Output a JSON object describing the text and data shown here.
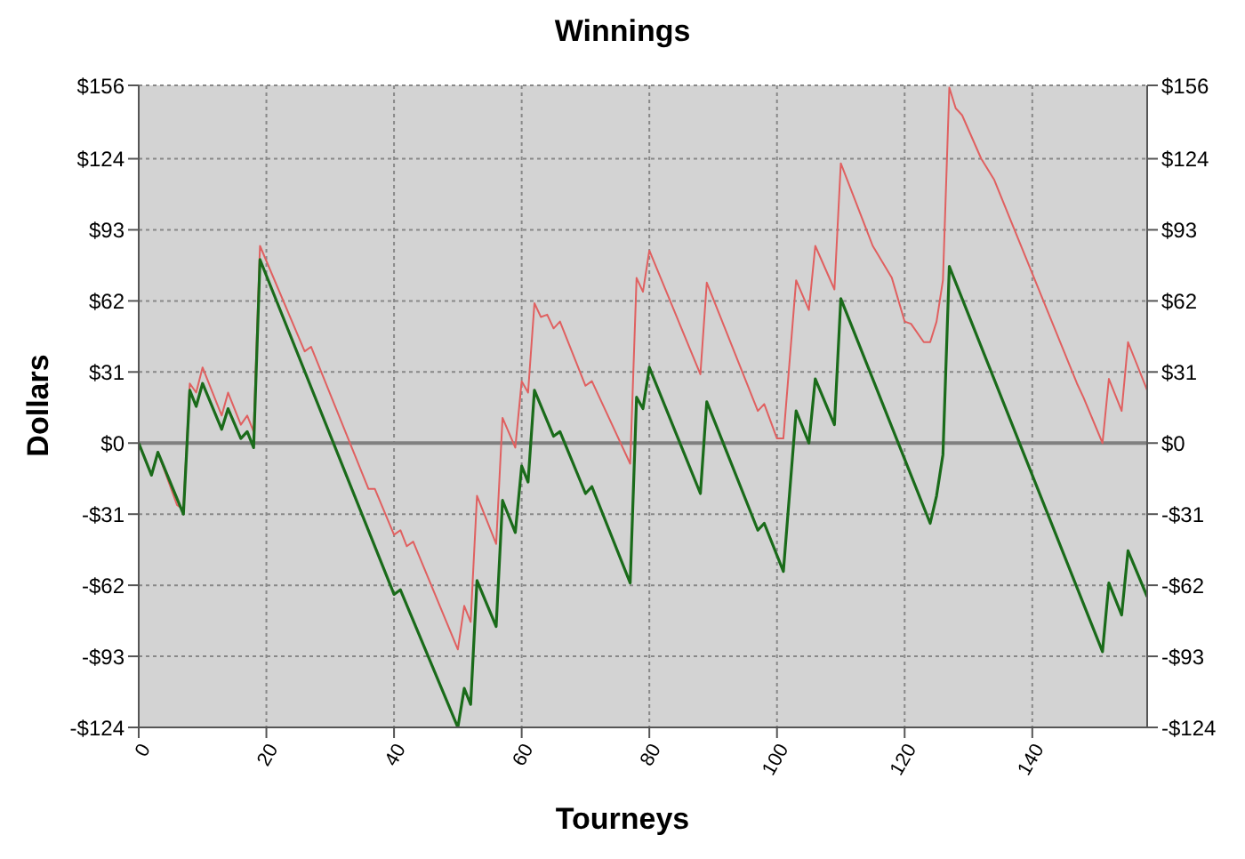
{
  "chart_data": {
    "type": "line",
    "title": "Winnings",
    "xlabel": "Tourneys",
    "ylabel": "Dollars",
    "xlim": [
      0,
      158
    ],
    "xticks": [
      0,
      20,
      40,
      60,
      80,
      100,
      120,
      140
    ],
    "ylim": [
      -124,
      156
    ],
    "yticks": [
      {
        "value": -124,
        "label": "-$124"
      },
      {
        "value": -93,
        "label": "-$93"
      },
      {
        "value": -62,
        "label": "-$62"
      },
      {
        "value": -31,
        "label": "-$31"
      },
      {
        "value": 0,
        "label": "$0"
      },
      {
        "value": 31,
        "label": "$31"
      },
      {
        "value": 62,
        "label": "$62"
      },
      {
        "value": 93,
        "label": "$93"
      },
      {
        "value": 124,
        "label": "$124"
      },
      {
        "value": 156,
        "label": "$156"
      }
    ],
    "y2lim": [
      -124,
      156
    ],
    "y2ticks": [
      {
        "value": -124,
        "label": "-$124"
      },
      {
        "value": -93,
        "label": "-$93"
      },
      {
        "value": -62,
        "label": "-$62"
      },
      {
        "value": -31,
        "label": "-$31"
      },
      {
        "value": 0,
        "label": "$0"
      },
      {
        "value": 31,
        "label": "$31"
      },
      {
        "value": 62,
        "label": "$62"
      },
      {
        "value": 93,
        "label": "$93"
      },
      {
        "value": 124,
        "label": "$124"
      },
      {
        "value": 156,
        "label": "$156"
      }
    ],
    "grid": true,
    "marker": "none",
    "line_style": "solid",
    "ref_lines": [
      {
        "axis": "y",
        "value": 0,
        "color": "#808080"
      }
    ],
    "series": [
      {
        "color": "#e06060",
        "x": [
          0,
          2,
          3,
          6,
          7,
          8,
          9,
          10,
          13,
          14,
          16,
          17,
          18,
          19,
          26,
          27,
          36,
          37,
          40,
          41,
          42,
          43,
          50,
          51,
          52,
          53,
          56,
          57,
          59,
          60,
          61,
          62,
          63,
          64,
          65,
          66,
          70,
          71,
          77,
          78,
          79,
          80,
          88,
          89,
          97,
          98,
          100,
          101,
          103,
          105,
          106,
          109,
          110,
          115,
          118,
          120,
          121,
          123,
          124,
          125,
          126,
          127,
          128,
          129,
          132,
          134,
          147,
          148,
          151,
          152,
          154,
          155,
          158
        ],
        "values": [
          0,
          -14,
          -4,
          -27,
          -29,
          26,
          22,
          33,
          12,
          22,
          8,
          12,
          5,
          86,
          40,
          42,
          -20,
          -20,
          -40,
          -38,
          -45,
          -43,
          -90,
          -71,
          -78,
          -23,
          -44,
          11,
          -2,
          27,
          22,
          61,
          55,
          56,
          50,
          53,
          25,
          27,
          -9,
          72,
          66,
          84,
          30,
          70,
          14,
          17,
          2,
          2,
          71,
          58,
          86,
          67,
          122,
          86,
          72,
          53,
          52,
          44,
          44,
          53,
          71,
          155,
          146,
          143,
          124,
          115,
          26,
          20,
          0,
          28,
          14,
          44,
          23
        ]
      },
      {
        "color": "#1a6b1a",
        "x": [
          0,
          2,
          3,
          7,
          8,
          9,
          10,
          13,
          14,
          16,
          17,
          18,
          19,
          40,
          41,
          50,
          51,
          52,
          53,
          56,
          57,
          59,
          60,
          61,
          62,
          65,
          66,
          70,
          71,
          77,
          78,
          79,
          80,
          88,
          89,
          97,
          98,
          101,
          103,
          105,
          106,
          109,
          110,
          124,
          125,
          126,
          127,
          151,
          152,
          154,
          155,
          158
        ],
        "values": [
          0,
          -14,
          -4,
          -31,
          23,
          16,
          26,
          6,
          15,
          2,
          5,
          -2,
          80,
          -66,
          -64,
          -124,
          -107,
          -114,
          -60,
          -80,
          -25,
          -39,
          -10,
          -17,
          23,
          3,
          5,
          -22,
          -19,
          -61,
          20,
          15,
          33,
          -22,
          18,
          -38,
          -35,
          -56,
          14,
          0,
          28,
          8,
          63,
          -35,
          -23,
          -5,
          77,
          -91,
          -61,
          -75,
          -47,
          -67
        ]
      }
    ]
  }
}
